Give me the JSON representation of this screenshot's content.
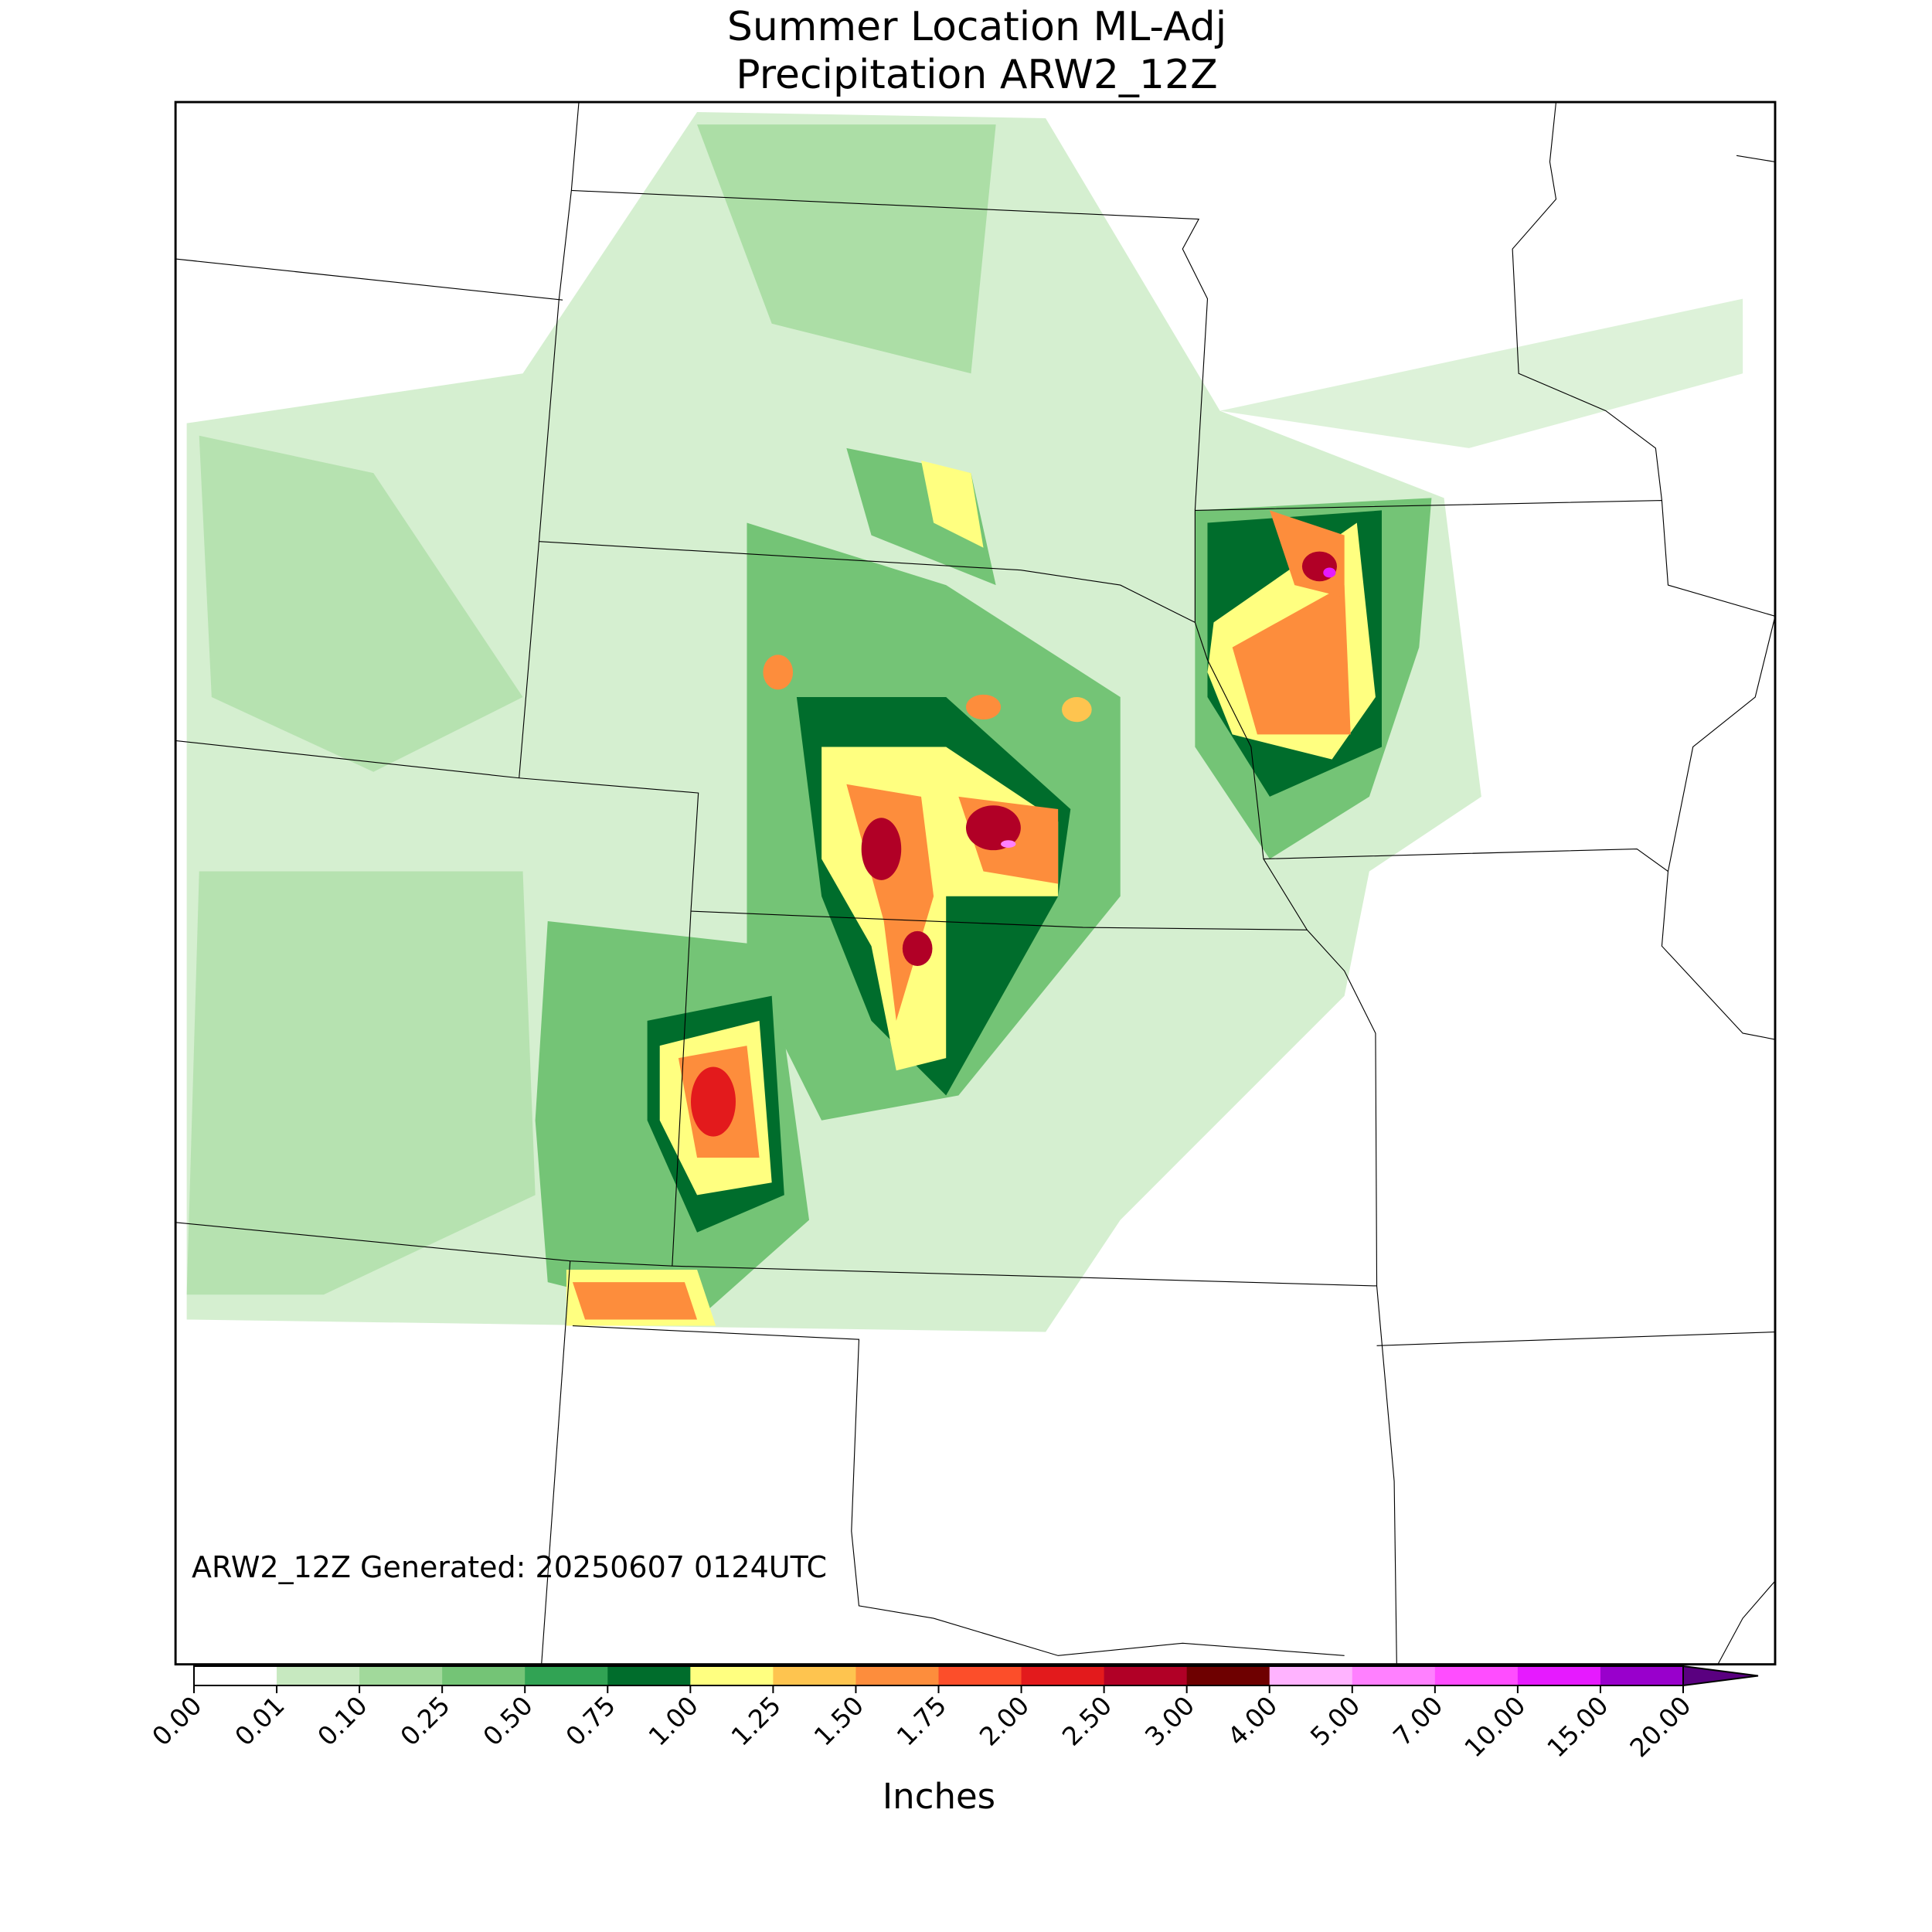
{
  "title": [
    "Summer Location ML-Adj",
    "Precipitation ARW2_12Z"
  ],
  "annotation": "ARW2_12Z Generated: 20250607 0124UTC",
  "colorbar": {
    "label": "Inches",
    "ticks": [
      {
        "value": 0,
        "label": "0.00"
      },
      0.01,
      {
        "value": 0.1,
        "label": "0.10"
      },
      0.25,
      {
        "value": 0.5,
        "label": "0.50"
      },
      0.75,
      {
        "value": 1,
        "label": "1.00"
      },
      1.25,
      {
        "value": 1.5,
        "label": "1.50"
      },
      1.75,
      {
        "value": 2,
        "label": "2.00"
      },
      {
        "value": 2.5,
        "label": "2.50"
      },
      {
        "value": 3,
        "label": "3.00"
      },
      {
        "value": 4,
        "label": "4.00"
      },
      {
        "value": 5,
        "label": "5.00"
      },
      {
        "value": 7,
        "label": "7.00"
      },
      {
        "value": 10,
        "label": "10.00"
      },
      {
        "value": 15,
        "label": "15.00"
      },
      {
        "value": 20,
        "label": "20.00"
      }
    ],
    "colors": [
      "#ffffff",
      "#c7e9c0",
      "#a1d99b",
      "#74c476",
      "#31a354",
      "#006d2c",
      "#ffff80",
      "#fec44f",
      "#fd8d3c",
      "#fc4e2a",
      "#e31a1c",
      "#b10026",
      "#6e0000",
      "#ffb3ff",
      "#ff80ff",
      "#ff4dff",
      "#e61aff",
      "#9900cc"
    ],
    "extend_color": "#5a0080"
  }
}
